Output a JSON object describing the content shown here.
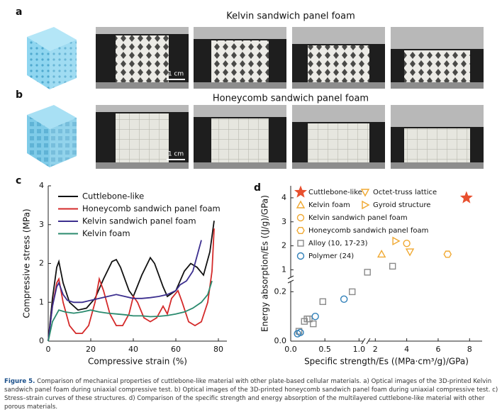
{
  "figure": {
    "panel_a": {
      "label": "a",
      "title": "Kelvin sandwich panel foam",
      "scale_bar": "1 cm"
    },
    "panel_b": {
      "label": "b",
      "title": "Honeycomb sandwich panel foam",
      "scale_bar": "1 cm"
    }
  },
  "chart_data": [
    {
      "type": "line",
      "label": "c",
      "x_label": "Compressive strain (%)",
      "y_label": "Compressive stress (MPa)",
      "xlim": [
        0,
        84
      ],
      "ylim": [
        0,
        4
      ],
      "xticks": [
        0,
        20,
        40,
        60,
        80
      ],
      "yticks": [
        0,
        1,
        2,
        3,
        4
      ],
      "legend": "upper left",
      "series": [
        {
          "name": "Cuttlebone-like",
          "color": "#111111",
          "x": [
            0,
            2,
            4,
            5,
            7,
            10,
            14,
            18,
            22,
            26,
            30,
            32,
            34,
            38,
            40,
            44,
            48,
            50,
            54,
            56,
            60,
            64,
            67,
            70,
            73,
            76,
            78
          ],
          "values": [
            0,
            1.1,
            1.9,
            2.05,
            1.5,
            1.0,
            0.8,
            0.85,
            1.1,
            1.6,
            2.05,
            2.1,
            1.9,
            1.3,
            1.15,
            1.7,
            2.15,
            2.0,
            1.4,
            1.15,
            1.3,
            1.8,
            2.0,
            1.9,
            1.7,
            2.3,
            3.1
          ]
        },
        {
          "name": "Honeycomb sandwich panel foam",
          "color": "#d42a2a",
          "x": [
            0,
            2,
            4,
            5,
            7,
            10,
            13,
            16,
            19,
            22,
            24,
            26,
            29,
            32,
            35,
            38,
            40,
            42,
            45,
            48,
            51,
            54,
            56,
            58,
            61,
            63,
            66,
            69,
            72,
            75,
            77,
            78
          ],
          "values": [
            0,
            0.9,
            1.5,
            1.6,
            1.0,
            0.4,
            0.2,
            0.2,
            0.4,
            1.0,
            1.6,
            1.3,
            0.7,
            0.4,
            0.4,
            0.7,
            1.15,
            1.0,
            0.6,
            0.5,
            0.6,
            0.9,
            0.7,
            1.1,
            1.3,
            1.0,
            0.5,
            0.4,
            0.5,
            1.0,
            1.8,
            2.9
          ]
        },
        {
          "name": "Kelvin sandwich panel foam",
          "color": "#3c2f8f",
          "x": [
            0,
            2,
            4,
            5,
            7,
            9,
            12,
            16,
            20,
            24,
            28,
            32,
            36,
            40,
            44,
            48,
            52,
            56,
            60,
            62,
            65,
            68,
            70,
            72
          ],
          "values": [
            0,
            0.9,
            1.4,
            1.5,
            1.2,
            1.05,
            1.0,
            1.0,
            1.05,
            1.1,
            1.15,
            1.2,
            1.15,
            1.1,
            1.1,
            1.12,
            1.15,
            1.2,
            1.3,
            1.45,
            1.55,
            1.8,
            2.2,
            2.6
          ]
        },
        {
          "name": "Kelvin foam",
          "color": "#2a8a6e",
          "x": [
            0,
            2,
            5,
            8,
            12,
            16,
            20,
            24,
            28,
            32,
            36,
            40,
            44,
            48,
            52,
            56,
            60,
            64,
            68,
            72,
            75,
            77
          ],
          "values": [
            0,
            0.5,
            0.8,
            0.75,
            0.72,
            0.75,
            0.8,
            0.75,
            0.72,
            0.7,
            0.68,
            0.65,
            0.65,
            0.63,
            0.64,
            0.66,
            0.7,
            0.75,
            0.85,
            1.0,
            1.2,
            1.55
          ]
        }
      ]
    },
    {
      "type": "scatter",
      "label": "d",
      "x_label": "Specific strength/Es ((MPa·cm³/g)/GPa)",
      "y_label": "Energy absorption/Es ((J/g)/GPa)",
      "xlim": [
        0,
        8.8
      ],
      "xbreak": [
        1.1,
        1.4
      ],
      "ylim": [
        0,
        4.5
      ],
      "ybreak": [
        0.25,
        0.6
      ],
      "xticks": [
        {
          "value": 0,
          "label": "0.0"
        },
        0.5,
        {
          "value": 1,
          "label": "1.0"
        },
        2,
        4,
        6,
        8
      ],
      "yticks": [
        {
          "value": 0,
          "label": "0.0"
        },
        0.2,
        1,
        2,
        3,
        4
      ],
      "legend": "upper left",
      "series": [
        {
          "name": "Cuttlebone-like",
          "color": "#e8502f",
          "marker": "star",
          "x": [
            7.8
          ],
          "values": [
            4.0
          ]
        },
        {
          "name": "Octet-truss lattice",
          "color": "#f0a830",
          "marker": "triangle-down",
          "x": [
            4.2
          ],
          "values": [
            1.75
          ]
        },
        {
          "name": "Kelvin foam",
          "color": "#f0a830",
          "marker": "triangle-up",
          "x": [
            2.4
          ],
          "values": [
            1.65
          ]
        },
        {
          "name": "Gyroid structure",
          "color": "#f0a830",
          "marker": "triangle-right",
          "x": [
            3.3
          ],
          "values": [
            2.2
          ]
        },
        {
          "name": "Kelvin sandwich panel foam",
          "color": "#f0a830",
          "marker": "circle",
          "x": [
            4.0
          ],
          "values": [
            2.1
          ]
        },
        {
          "name": "Honeycomb sandwich panel foam",
          "color": "#f0a830",
          "marker": "hexagon",
          "x": [
            6.6
          ],
          "values": [
            1.65
          ]
        },
        {
          "name": "Alloy (10, 17-23)",
          "color": "#8a8a8a",
          "marker": "square",
          "x": [
            0.12,
            0.2,
            0.24,
            0.27,
            0.33,
            0.47,
            0.9,
            1.5,
            3.1
          ],
          "values": [
            0.04,
            0.08,
            0.09,
            0.09,
            0.07,
            0.16,
            0.2,
            0.9,
            1.15
          ]
        },
        {
          "name": "Polymer (24)",
          "color": "#2f7fb8",
          "marker": "circle",
          "x": [
            0.1,
            0.14,
            0.36,
            0.78
          ],
          "values": [
            0.03,
            0.035,
            0.1,
            0.17
          ]
        }
      ]
    }
  ],
  "caption": {
    "label": "Figure 5.",
    "text": "Comparison of mechanical properties of cuttlebone-like material with other plate-based cellular materials. a) Optical images of the 3D-printed Kelvin sandwich panel foam during uniaxial compressive test. b) Optical images of the 3D-printed honeycomb sandwich panel foam during uniaxial compressive test. c) Stress–strain curves of these structures. d) Comparison of the specific strength and energy absorption of the multilayered cuttlebone-like material with other porous materials."
  }
}
